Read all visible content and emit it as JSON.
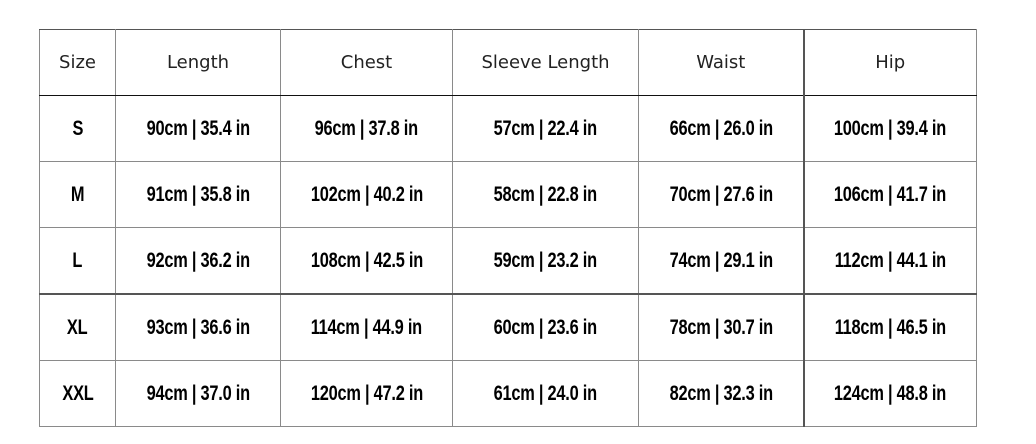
{
  "headers": [
    "Size",
    "Length",
    "Chest",
    "Sleeve Length",
    "Waist",
    "Hip"
  ],
  "rows": [
    [
      "S",
      "90cm | 35.4 in",
      "96cm | 37.8 in",
      "57cm | 22.4 in",
      "66cm | 26.0 in",
      "100cm | 39.4 in"
    ],
    [
      "M",
      "91cm | 35.8 in",
      "102cm | 40.2 in",
      "58cm | 22.8 in",
      "70cm | 27.6 in",
      "106cm | 41.7 in"
    ],
    [
      "L",
      "92cm | 36.2 in",
      "108cm | 42.5 in",
      "59cm | 23.2 in",
      "74cm | 29.1 in",
      "112cm | 44.1 in"
    ],
    [
      "XL",
      "93cm | 36.6 in",
      "114cm | 44.9 in",
      "60cm | 23.6 in",
      "78cm | 30.7 in",
      "118cm | 46.5 in"
    ],
    [
      "XXL",
      "94cm | 37.0 in",
      "120cm | 47.2 in",
      "61cm | 24.0 in",
      "82cm | 32.3 in",
      "124cm | 48.8 in"
    ]
  ]
}
